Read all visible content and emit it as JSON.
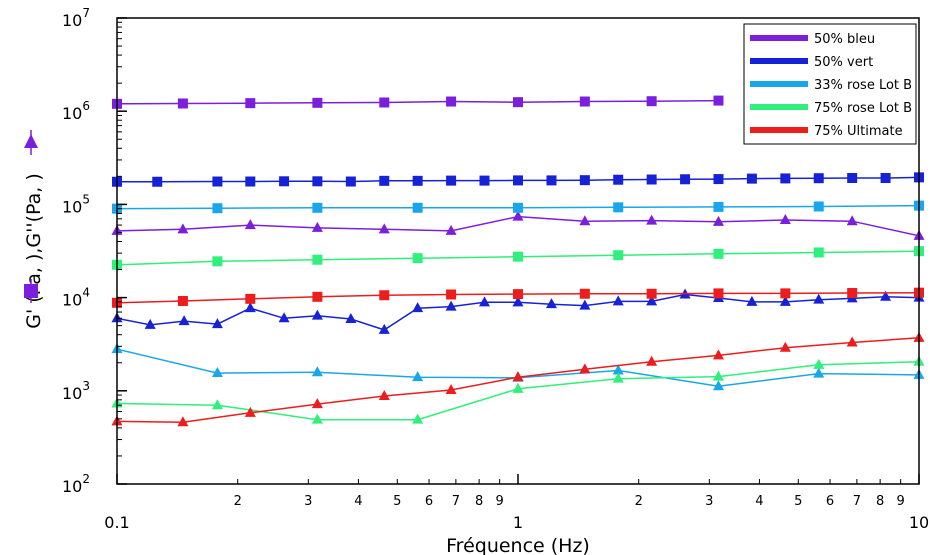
{
  "chart_data": {
    "type": "line",
    "xscale": "log",
    "yscale": "log",
    "xlim": [
      0.1,
      10
    ],
    "ylim": [
      100,
      10000000
    ],
    "xlabel": "Fréquence (Hz)",
    "ylabel": "G' (Pa,  ),G''(Pa,  )",
    "grid": false,
    "legend_position": "top-right",
    "x_major_ticks": [
      {
        "value": 0.1,
        "label": "0.1"
      },
      {
        "value": 1,
        "label": "1"
      },
      {
        "value": 10,
        "label": "10"
      }
    ],
    "x_minor_ticks": [
      {
        "value": 0.2,
        "label": "2"
      },
      {
        "value": 0.3,
        "label": "3"
      },
      {
        "value": 0.4,
        "label": "4"
      },
      {
        "value": 0.5,
        "label": "5"
      },
      {
        "value": 0.6,
        "label": "6"
      },
      {
        "value": 0.7,
        "label": "7"
      },
      {
        "value": 0.8,
        "label": "8"
      },
      {
        "value": 0.9,
        "label": "9"
      },
      {
        "value": 2,
        "label": "2"
      },
      {
        "value": 3,
        "label": "3"
      },
      {
        "value": 4,
        "label": "4"
      },
      {
        "value": 5,
        "label": "5"
      },
      {
        "value": 6,
        "label": "6"
      },
      {
        "value": 7,
        "label": "7"
      },
      {
        "value": 8,
        "label": "8"
      },
      {
        "value": 9,
        "label": "9"
      }
    ],
    "y_major_ticks": [
      {
        "value": 100,
        "base": "10",
        "exp": "2"
      },
      {
        "value": 1000,
        "base": "10",
        "exp": "3"
      },
      {
        "value": 10000,
        "base": "10",
        "exp": "4"
      },
      {
        "value": 100000,
        "base": "10",
        "exp": "5"
      },
      {
        "value": 1000000,
        "base": "10",
        "exp": "6"
      },
      {
        "value": 10000000,
        "base": "10",
        "exp": "7"
      }
    ],
    "series": [
      {
        "name": "50% bleu",
        "color": "#7b1fdc",
        "G_prime": {
          "x": [
            0.1,
            0.146,
            0.215,
            0.316,
            0.464,
            0.681,
            1.0,
            1.468,
            2.154,
            3.162
          ],
          "y": [
            1200000,
            1210000,
            1220000,
            1230000,
            1240000,
            1270000,
            1250000,
            1270000,
            1280000,
            1300000
          ]
        },
        "G_double_prime": {
          "x": [
            0.1,
            0.146,
            0.215,
            0.316,
            0.464,
            0.681,
            1.0,
            1.468,
            2.154,
            3.162,
            4.642,
            6.813,
            10
          ],
          "y": [
            52000,
            54000,
            60000,
            56000,
            54000,
            52000,
            74000,
            66000,
            67000,
            65000,
            68000,
            66000,
            46000
          ]
        }
      },
      {
        "name": "50% vert",
        "color": "#1622d6",
        "G_prime": {
          "x": [
            0.1,
            0.126,
            0.178,
            0.215,
            0.261,
            0.316,
            0.383,
            0.464,
            0.562,
            0.681,
            0.825,
            1.0,
            1.212,
            1.468,
            1.778,
            2.154,
            2.61,
            3.162,
            3.831,
            4.642,
            5.623,
            6.813,
            8.254,
            10
          ],
          "y": [
            175000,
            175000,
            176000,
            176000,
            177000,
            177000,
            176000,
            179000,
            179000,
            180000,
            180000,
            181000,
            181000,
            182000,
            184000,
            185000,
            186000,
            187000,
            189000,
            190000,
            191000,
            192000,
            192000,
            195000
          ]
        },
        "G_double_prime": {
          "x": [
            0.1,
            0.121,
            0.147,
            0.178,
            0.215,
            0.261,
            0.316,
            0.383,
            0.464,
            0.562,
            0.681,
            0.825,
            1.0,
            1.212,
            1.468,
            1.778,
            2.154,
            2.61,
            3.162,
            3.831,
            4.642,
            5.623,
            6.813,
            8.254,
            10
          ],
          "y": [
            6000,
            5100,
            5600,
            5200,
            7700,
            6000,
            6400,
            5900,
            4500,
            7700,
            8000,
            8900,
            8900,
            8500,
            8200,
            9100,
            9100,
            10800,
            9900,
            9000,
            9000,
            9500,
            9800,
            10200,
            10000
          ]
        }
      },
      {
        "name": "33% rose Lot B",
        "color": "#1aa6ea",
        "G_prime": {
          "x": [
            0.1,
            0.178,
            0.316,
            0.562,
            1.0,
            1.778,
            3.162,
            5.623,
            10
          ],
          "y": [
            90000,
            91000,
            92000,
            92000,
            92000,
            93000,
            94000,
            95000,
            97000
          ]
        },
        "G_double_prime": {
          "x": [
            0.1,
            0.178,
            0.316,
            0.562,
            1.0,
            1.778,
            3.162,
            5.623,
            10
          ],
          "y": [
            2800,
            1550,
            1580,
            1400,
            1380,
            1650,
            1120,
            1530,
            1480
          ]
        }
      },
      {
        "name": "75% rose Lot B",
        "color": "#2ef07a",
        "G_prime": {
          "x": [
            0.1,
            0.178,
            0.316,
            0.562,
            1.0,
            1.778,
            3.162,
            5.623,
            10
          ],
          "y": [
            22500,
            24500,
            25500,
            26500,
            27500,
            28500,
            29500,
            30500,
            31500
          ]
        },
        "G_double_prime": {
          "x": [
            0.1,
            0.178,
            0.316,
            0.562,
            1.0,
            1.778,
            3.162,
            5.623,
            10
          ],
          "y": [
            730,
            700,
            490,
            490,
            1050,
            1350,
            1420,
            1900,
            2050
          ]
        }
      },
      {
        "name": "75% Ultimate",
        "color": "#ec1d1d",
        "G_prime": {
          "x": [
            0.1,
            0.146,
            0.215,
            0.316,
            0.464,
            0.681,
            1.0,
            1.468,
            2.154,
            3.162,
            4.642,
            6.813,
            10
          ],
          "y": [
            8800,
            9200,
            9700,
            10200,
            10600,
            10800,
            10900,
            11000,
            11000,
            11100,
            11100,
            11200,
            11300
          ]
        },
        "G_double_prime": {
          "x": [
            0.1,
            0.146,
            0.215,
            0.316,
            0.464,
            0.681,
            1.0,
            1.468,
            2.154,
            3.162,
            4.642,
            6.813,
            10
          ],
          "y": [
            470,
            460,
            580,
            720,
            880,
            1020,
            1400,
            1700,
            2050,
            2400,
            2900,
            3300,
            3700
          ]
        }
      }
    ]
  }
}
